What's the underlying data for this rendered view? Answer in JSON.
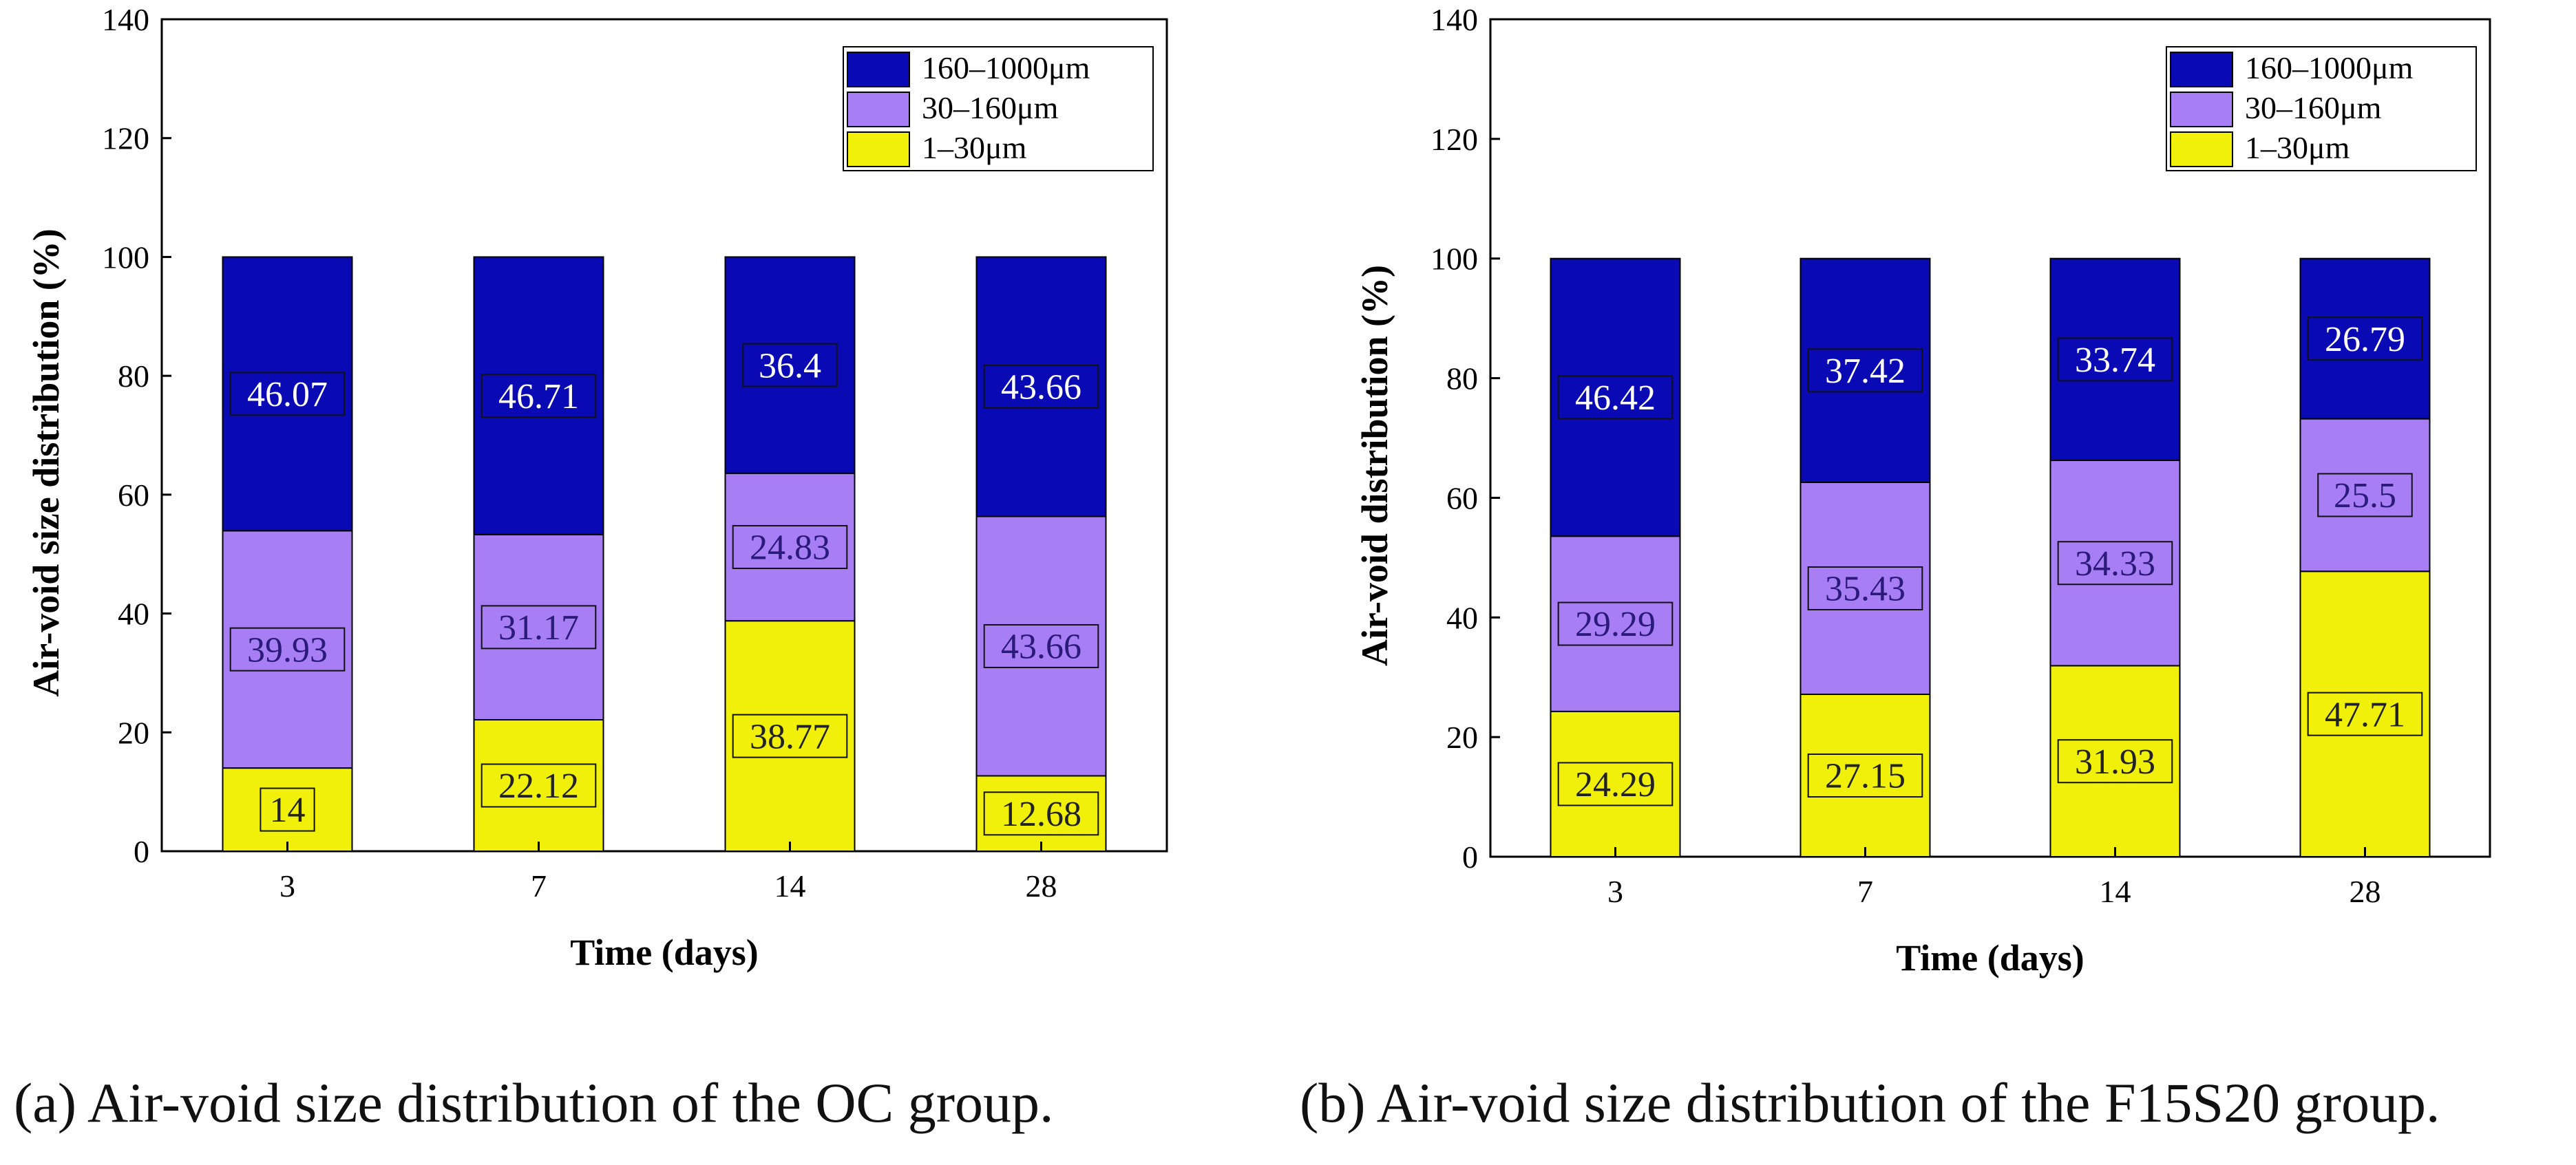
{
  "colors": {
    "seg_160_1000": "#0a0ab4",
    "seg_30_160": "#a87ef5",
    "seg_1_30": "#f0f00a",
    "label_on_dark": "#ffffff",
    "label_on_light": "#222222"
  },
  "chart_data": [
    {
      "type": "bar",
      "stacked": true,
      "title": "",
      "caption": "(a) Air-void size distribution of the OC group.",
      "xlabel": "Time (days)",
      "ylabel": "Air-void size distribution (%)",
      "ylim": [
        0,
        140
      ],
      "yticks": [
        0,
        20,
        40,
        60,
        80,
        100,
        120,
        140
      ],
      "categories": [
        "3",
        "7",
        "14",
        "28"
      ],
      "legend_position": "top-right",
      "series": [
        {
          "name": "1–30μm",
          "values": [
            14,
            22.12,
            38.77,
            12.68
          ],
          "labels": [
            "14",
            "22.12",
            "38.77",
            "12.68"
          ]
        },
        {
          "name": "30–160μm",
          "values": [
            39.93,
            31.17,
            24.83,
            43.66
          ],
          "labels": [
            "39.93",
            "31.17",
            "24.83",
            "43.66"
          ]
        },
        {
          "name": "160–1000μm",
          "values": [
            46.07,
            46.71,
            36.4,
            43.66
          ],
          "labels": [
            "46.07",
            "46.71",
            "36.4",
            "43.66"
          ]
        }
      ],
      "legend_order": [
        "160–1000μm",
        "30–160μm",
        "1–30μm"
      ]
    },
    {
      "type": "bar",
      "stacked": true,
      "title": "",
      "caption": "(b) Air-void size distribution of the F15S20 group.",
      "xlabel": "Time (days)",
      "ylabel": "Air-void distribution (%)",
      "ylim": [
        0,
        140
      ],
      "yticks": [
        0,
        20,
        40,
        60,
        80,
        100,
        120,
        140
      ],
      "categories": [
        "3",
        "7",
        "14",
        "28"
      ],
      "legend_position": "top-right",
      "series": [
        {
          "name": "1–30μm",
          "values": [
            24.29,
            27.15,
            31.93,
            47.71
          ],
          "labels": [
            "24.29",
            "27.15",
            "31.93",
            "47.71"
          ]
        },
        {
          "name": "30–160μm",
          "values": [
            29.29,
            35.43,
            34.33,
            25.5
          ],
          "labels": [
            "29.29",
            "35.43",
            "34.33",
            "25.5"
          ]
        },
        {
          "name": "160–1000μm",
          "values": [
            46.42,
            37.42,
            33.74,
            26.79
          ],
          "labels": [
            "46.42",
            "37.42",
            "33.74",
            "26.79"
          ]
        }
      ],
      "legend_order": [
        "160–1000μm",
        "30–160μm",
        "1–30μm"
      ]
    }
  ]
}
